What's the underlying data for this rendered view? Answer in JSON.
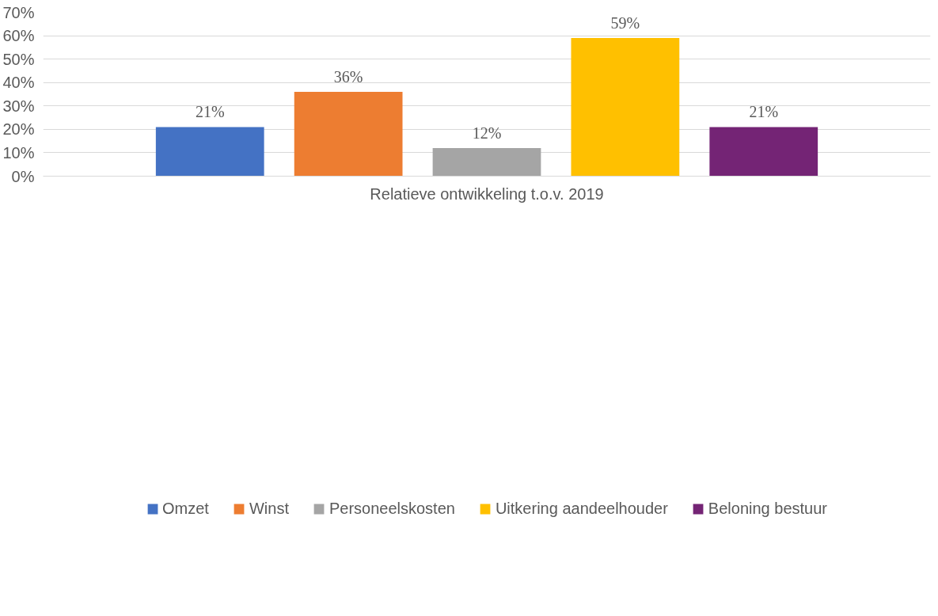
{
  "chart_data": {
    "type": "bar",
    "categories": [
      "Relatieve ontwikkeling t.o.v. 2019"
    ],
    "series": [
      {
        "name": "Omzet",
        "color": "#4472c4",
        "values": [
          21
        ],
        "value_labels": [
          "21%"
        ]
      },
      {
        "name": "Winst",
        "color": "#ed7d31",
        "values": [
          36
        ],
        "value_labels": [
          "36%"
        ]
      },
      {
        "name": "Personeelskosten",
        "color": "#a5a5a5",
        "values": [
          12
        ],
        "value_labels": [
          "12%"
        ]
      },
      {
        "name": "Uitkering aandeelhouder",
        "color": "#ffc000",
        "values": [
          59
        ],
        "value_labels": [
          "59%"
        ]
      },
      {
        "name": "Beloning bestuur",
        "color": "#742475",
        "values": [
          21
        ],
        "value_labels": [
          "21%"
        ]
      }
    ],
    "ylim": [
      0,
      70
    ],
    "yticks": [
      {
        "value": 0,
        "label": "0%"
      },
      {
        "value": 10,
        "label": "10%"
      },
      {
        "value": 20,
        "label": "20%"
      },
      {
        "value": 30,
        "label": "30%"
      },
      {
        "value": 40,
        "label": "40%"
      },
      {
        "value": 50,
        "label": "50%"
      },
      {
        "value": 60,
        "label": "60%"
      },
      {
        "value": 70,
        "label": "70%"
      }
    ],
    "grid": "y",
    "legend": "bottom"
  }
}
